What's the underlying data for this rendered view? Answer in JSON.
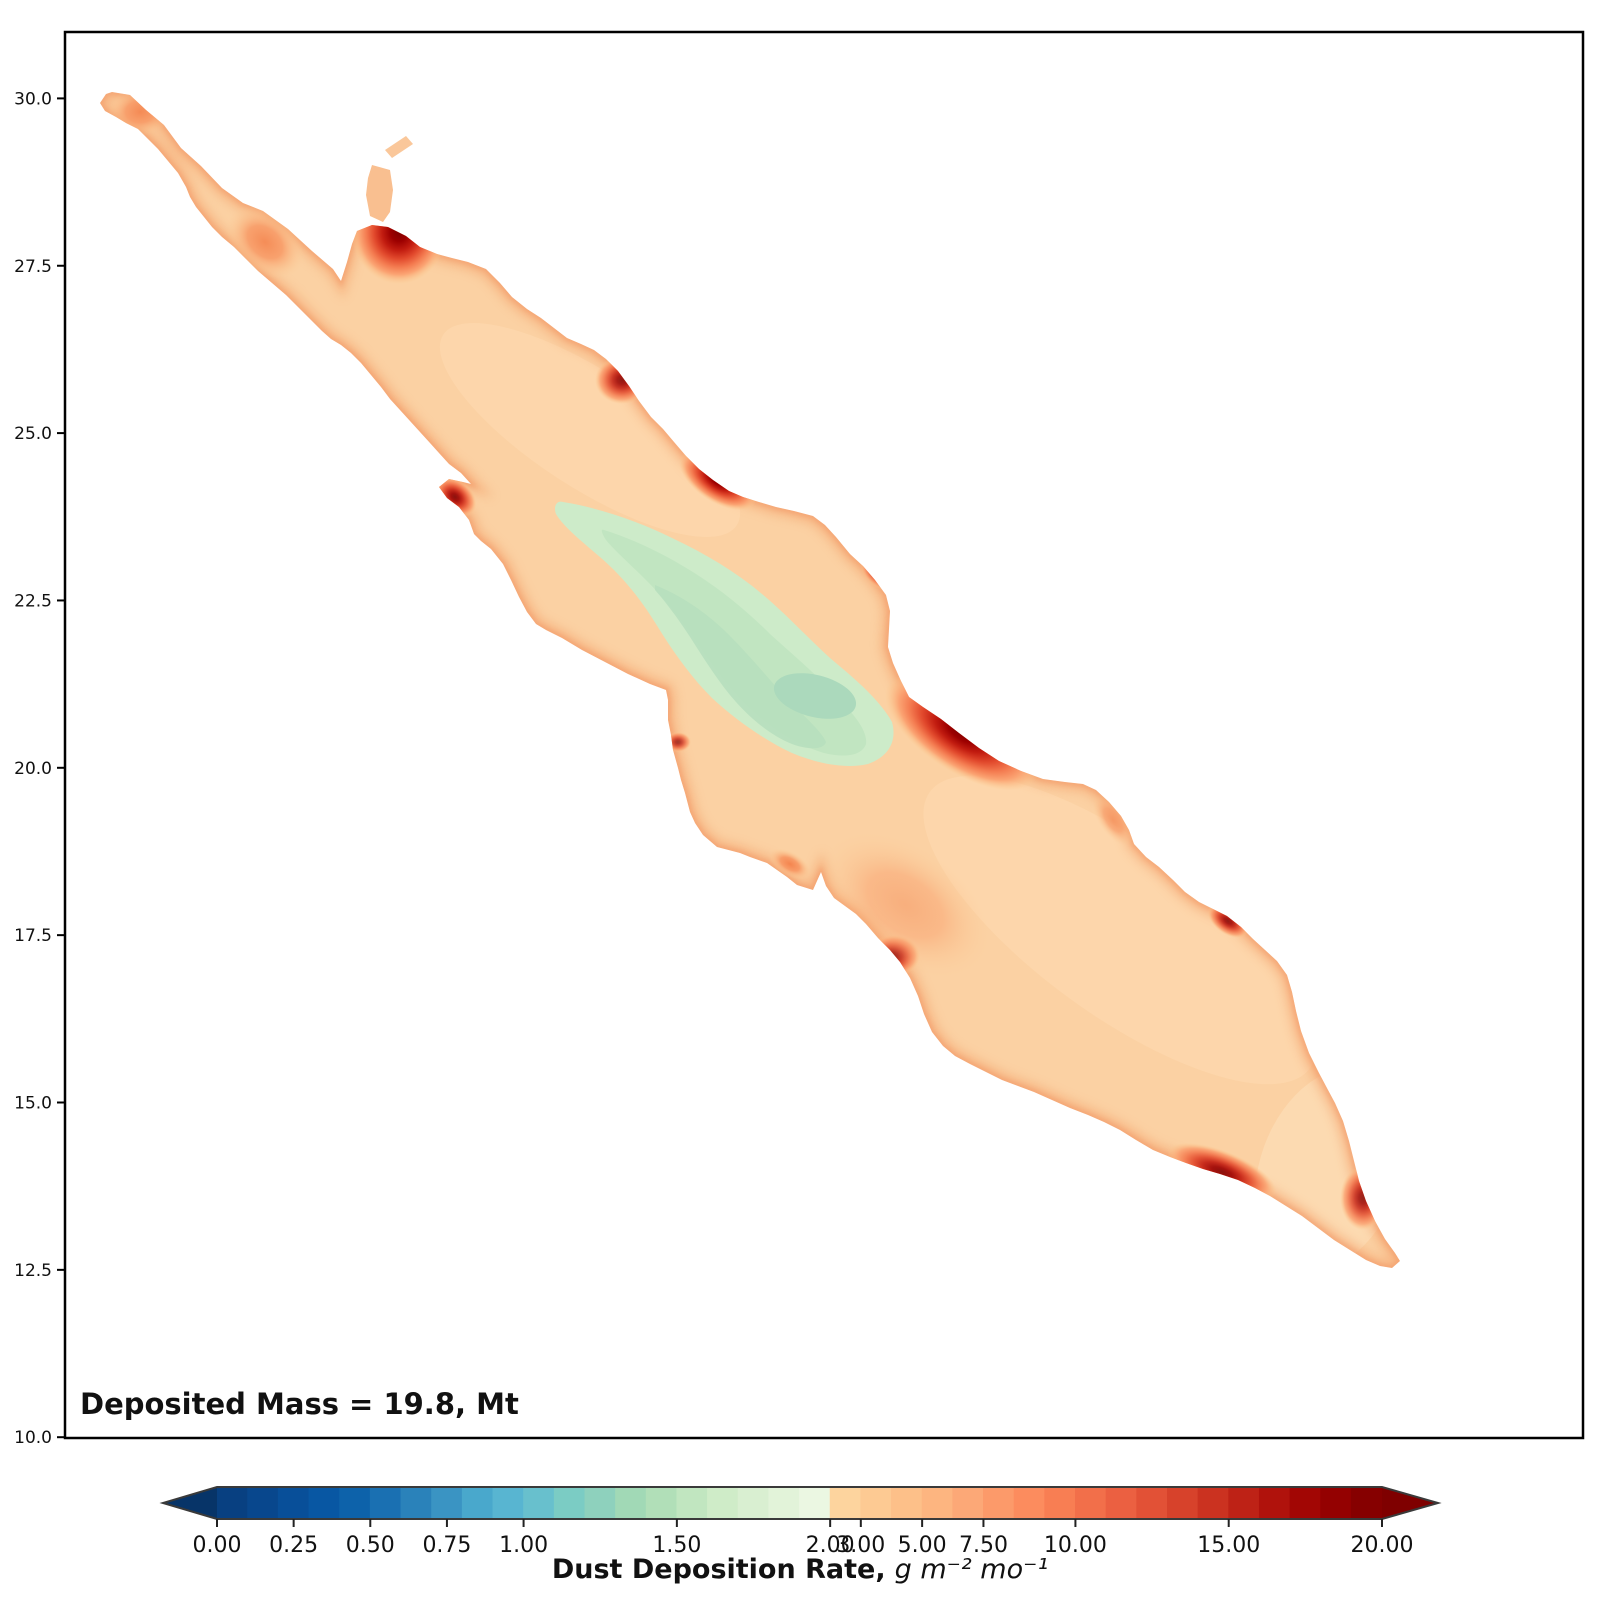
{
  "figure": {
    "annotation": "Deposited Mass = 19.8, Mt",
    "yaxis": {
      "ticks": [
        "30.0",
        "27.5",
        "25.0",
        "22.5",
        "20.0",
        "17.5",
        "15.0",
        "12.5",
        "10.0"
      ]
    },
    "colorbar": {
      "label_bold": "Dust Deposition Rate,",
      "label_math": "g m⁻² mo⁻¹",
      "under_color": "#073468",
      "over_color": "#7f0000",
      "outline_color": "#3a3a3a",
      "ticks": [
        {
          "label": "0.00",
          "pos": 0
        },
        {
          "label": "0.25",
          "pos": 2.5
        },
        {
          "label": "0.50",
          "pos": 5
        },
        {
          "label": "0.75",
          "pos": 7.5
        },
        {
          "label": "1.00",
          "pos": 10
        },
        {
          "label": "1.50",
          "pos": 15
        },
        {
          "label": "2.00",
          "pos": 20
        },
        {
          "label": "3.00",
          "pos": 21
        },
        {
          "label": "5.00",
          "pos": 23
        },
        {
          "label": "7.50",
          "pos": 25
        },
        {
          "label": "10.00",
          "pos": 28
        },
        {
          "label": "15.00",
          "pos": 33
        },
        {
          "label": "20.00",
          "pos": 38
        }
      ],
      "segments": [
        "#084081",
        "#08478d",
        "#084f99",
        "#0857a3",
        "#0d62aa",
        "#1a70b2",
        "#2a82ba",
        "#3a94c3",
        "#49a8cc",
        "#58b5d1",
        "#68c0cd",
        "#7bccc4",
        "#8ed1bd",
        "#a1d9b6",
        "#b1dfb8",
        "#c1e6c0",
        "#cfecc8",
        "#d9efd1",
        "#e2f3d9",
        "#ebf7e2",
        "#fdd49e",
        "#fdca93",
        "#fdc089",
        "#fdb580",
        "#fca877",
        "#fc9a6a",
        "#fc8c5e",
        "#f87e53",
        "#f26f4a",
        "#eb6041",
        "#e25136",
        "#d7422b",
        "#cb3220",
        "#be2216",
        "#b0120c",
        "#a20604",
        "#940101",
        "#860000"
      ]
    },
    "chart_data": {
      "type": "heatmap",
      "subtype": "filled_contour_map",
      "quantity": "Dust Deposition Rate",
      "units": "g m⁻² mo⁻¹",
      "y_axis": {
        "tick_values": [
          30.0,
          27.5,
          25.0,
          22.5,
          20.0,
          17.5,
          15.0,
          12.5,
          10.0
        ],
        "range": [
          10.0,
          31.0
        ]
      },
      "x_axis": {
        "tick_values": []
      },
      "colorbar": {
        "tick_levels": [
          0.0,
          0.25,
          0.5,
          0.75,
          1.0,
          1.5,
          2.0,
          3.0,
          5.0,
          7.5,
          10.0,
          15.0,
          20.0
        ],
        "extend": "both",
        "low_side_palette": "dark blue to pale green (values 0 to 2)",
        "high_side_palette": "light orange to dark red (values 2 to 20+)"
      },
      "annotation": {
        "text": "Deposited Mass = 19.8, Mt",
        "deposited_mass_Mt": 19.8
      },
      "summary_readings": [
        {
          "feature": "basin interior (most of the sea)",
          "value_g_m2_mo": "3-6"
        },
        {
          "feature": "central low-deposition pool, about 20.5-24 N",
          "value_g_m2_mo": "1.2-2"
        },
        {
          "feature": "minimum core near 21.2 N",
          "value_g_m2_mo": "about 1.2"
        },
        {
          "feature": "coastal hotspots near 28.0, 25.8, 24.2, 20.6, 17.2, 14.0, 13.6 N",
          "value_g_m2_mo": "10-20+"
        }
      ]
    }
  }
}
